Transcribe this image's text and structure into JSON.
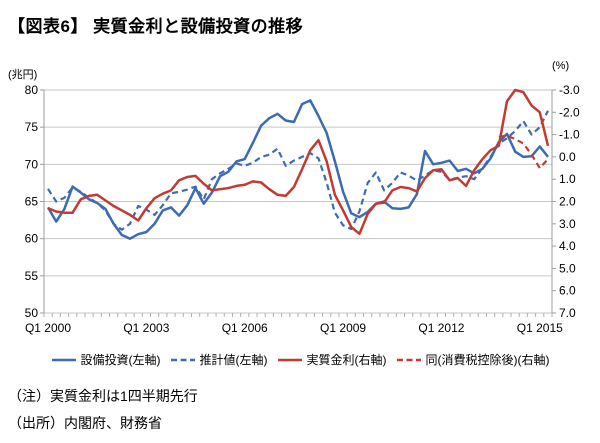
{
  "page": {
    "title": "【図表6】 実質金利と設備投資の推移",
    "note1": "（注）実質金利は1四半期先行",
    "note2": "（出所）内閣府、財務省"
  },
  "chart_data": {
    "type": "line",
    "title": "【図表6】 実質金利と設備投資の推移",
    "left_axis": {
      "unit": "(兆円)",
      "min": 50,
      "max": 80,
      "ticks": [
        80,
        75,
        70,
        65,
        60,
        55,
        50
      ]
    },
    "right_axis": {
      "unit": "(%)",
      "top": -3.0,
      "bottom": 7.0,
      "inverted": true,
      "ticks": [
        "-3.0",
        "-2.0",
        "-1.0",
        "0.0",
        "1.0",
        "2.0",
        "3.0",
        "4.0",
        "5.0",
        "6.0",
        "7.0"
      ]
    },
    "x_axis": {
      "tick_labels": [
        "Q1 2000",
        "Q1 2003",
        "Q1 2006",
        "Q1 2009",
        "Q1 2012",
        "Q1 2015"
      ],
      "tick_indices": [
        0,
        12,
        24,
        36,
        48,
        60
      ]
    },
    "grid": "horizontal",
    "legend_position": "bottom",
    "colors": {
      "blue": "#3B6BB4",
      "red": "#C23B33",
      "gridline": "#C6C6C6",
      "axis": "#9E9E9E"
    },
    "categories": [
      "Q1 2000",
      "Q2 2000",
      "Q3 2000",
      "Q4 2000",
      "Q1 2001",
      "Q2 2001",
      "Q3 2001",
      "Q4 2001",
      "Q1 2002",
      "Q2 2002",
      "Q3 2002",
      "Q4 2002",
      "Q1 2003",
      "Q2 2003",
      "Q3 2003",
      "Q4 2003",
      "Q1 2004",
      "Q2 2004",
      "Q3 2004",
      "Q4 2004",
      "Q1 2005",
      "Q2 2005",
      "Q3 2005",
      "Q4 2005",
      "Q1 2006",
      "Q2 2006",
      "Q3 2006",
      "Q4 2006",
      "Q1 2007",
      "Q2 2007",
      "Q3 2007",
      "Q4 2007",
      "Q1 2008",
      "Q2 2008",
      "Q3 2008",
      "Q4 2008",
      "Q1 2009",
      "Q2 2009",
      "Q3 2009",
      "Q4 2009",
      "Q1 2010",
      "Q2 2010",
      "Q3 2010",
      "Q4 2010",
      "Q1 2011",
      "Q2 2011",
      "Q3 2011",
      "Q4 2011",
      "Q1 2012",
      "Q2 2012",
      "Q3 2012",
      "Q4 2012",
      "Q1 2013",
      "Q2 2013",
      "Q3 2013",
      "Q4 2013",
      "Q1 2014",
      "Q2 2014",
      "Q3 2014",
      "Q4 2014",
      "Q1 2015",
      "Q2 2015"
    ],
    "series": [
      {
        "name": "設備投資(左軸)",
        "axis": "left",
        "style": "solid",
        "color": "#3B6BB4",
        "values": [
          64.2,
          62.3,
          64.0,
          67.0,
          66.2,
          65.3,
          64.8,
          64.0,
          62.0,
          60.5,
          60.0,
          60.6,
          60.9,
          62.0,
          63.8,
          64.2,
          63.1,
          64.5,
          66.8,
          64.7,
          66.2,
          68.4,
          69.0,
          70.4,
          70.7,
          72.9,
          75.2,
          76.2,
          76.8,
          75.9,
          75.7,
          78.1,
          78.6,
          76.5,
          74.2,
          70.4,
          66.3,
          63.4,
          62.9,
          63.6,
          64.7,
          65.0,
          64.1,
          64.0,
          64.2,
          66.0,
          71.8,
          70.0,
          70.2,
          70.5,
          69.1,
          69.4,
          68.8,
          69.4,
          70.8,
          73.0,
          74.1,
          71.7,
          71.0,
          71.1,
          72.4,
          71.0
        ]
      },
      {
        "name": "推計値(左軸)",
        "axis": "left",
        "style": "dashed",
        "color": "#3B6BB4",
        "values": [
          66.7,
          65.0,
          65.5,
          66.9,
          66.3,
          65.5,
          64.8,
          63.8,
          62.0,
          61.2,
          62.0,
          64.4,
          63.9,
          63.2,
          64.5,
          66.1,
          66.3,
          66.6,
          67.0,
          65.3,
          68.0,
          68.8,
          69.4,
          70.1,
          69.8,
          70.2,
          71.0,
          71.3,
          72.1,
          69.8,
          70.5,
          71.0,
          71.5,
          70.8,
          67.5,
          63.5,
          61.8,
          61.3,
          63.7,
          67.5,
          68.9,
          66.5,
          67.5,
          68.9,
          68.5,
          67.8,
          68.5,
          69.2,
          69.0,
          67.9,
          68.2,
          68.4,
          68.0,
          69.5,
          71.0,
          72.8,
          73.5,
          74.5,
          75.8,
          74.0,
          75.0,
          77.2
        ]
      },
      {
        "name": "実質金利(右軸)",
        "axis": "right",
        "style": "solid",
        "color": "#C23B33",
        "values": [
          2.3,
          2.45,
          2.5,
          2.5,
          1.9,
          1.75,
          1.7,
          1.95,
          2.2,
          2.4,
          2.6,
          2.85,
          2.3,
          1.85,
          1.65,
          1.5,
          1.05,
          0.9,
          0.85,
          1.2,
          1.5,
          1.45,
          1.4,
          1.3,
          1.25,
          1.1,
          1.15,
          1.45,
          1.7,
          1.75,
          1.35,
          0.55,
          -0.3,
          -0.75,
          0.2,
          1.7,
          2.4,
          3.15,
          3.45,
          2.55,
          2.1,
          2.05,
          1.5,
          1.35,
          1.4,
          1.55,
          0.95,
          0.6,
          0.55,
          1.05,
          0.95,
          1.3,
          0.6,
          0.1,
          -0.3,
          -0.5,
          -2.5,
          -3.0,
          -2.9,
          -2.3,
          -2.0,
          -0.5
        ]
      },
      {
        "name": "同(消費税控除後)(右軸)",
        "axis": "right",
        "style": "dashed",
        "color": "#C23B33",
        "values": [
          null,
          null,
          null,
          null,
          null,
          null,
          null,
          null,
          null,
          null,
          null,
          null,
          null,
          null,
          null,
          null,
          null,
          null,
          null,
          null,
          null,
          null,
          null,
          null,
          null,
          null,
          null,
          null,
          null,
          null,
          null,
          null,
          null,
          null,
          null,
          null,
          null,
          null,
          null,
          null,
          null,
          null,
          null,
          null,
          null,
          null,
          null,
          null,
          null,
          null,
          null,
          null,
          null,
          null,
          null,
          -0.9,
          -0.95,
          -0.8,
          -0.6,
          -0.1,
          0.5,
          0.1
        ]
      }
    ]
  }
}
